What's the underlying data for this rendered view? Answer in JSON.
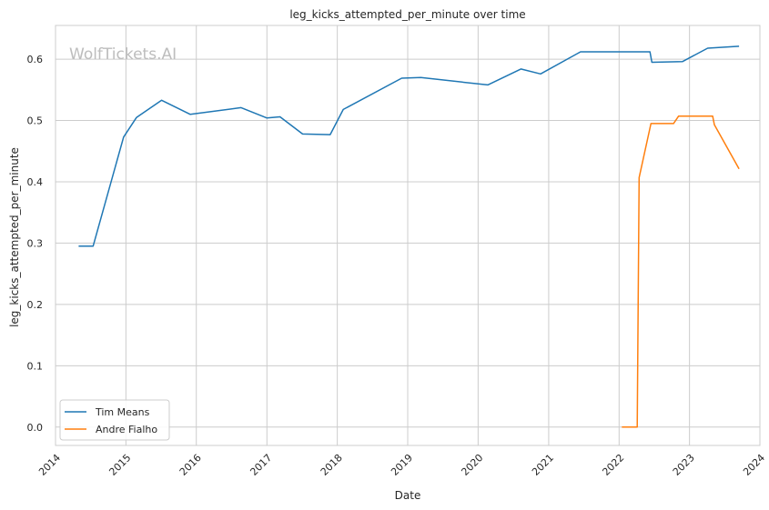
{
  "chart_data": {
    "type": "line",
    "title": "leg_kicks_attempted_per_minute over time",
    "xlabel": "Date",
    "ylabel": "leg_kicks_attempted_per_minute",
    "watermark": "WolfTickets.AI",
    "x_ticks": [
      "2014",
      "2015",
      "2016",
      "2017",
      "2018",
      "2019",
      "2020",
      "2021",
      "2022",
      "2023",
      "2024"
    ],
    "y_ticks": [
      "0.0",
      "0.1",
      "0.2",
      "0.3",
      "0.4",
      "0.5",
      "0.6"
    ],
    "xlim": [
      "2014-01-01",
      "2024-01-01"
    ],
    "ylim": [
      -0.03,
      0.655
    ],
    "grid": true,
    "legend_position": "lower-left",
    "series": [
      {
        "name": "Tim Means",
        "color": "#1f77b4",
        "points": [
          [
            "2014-05-01",
            0.295
          ],
          [
            "2014-07-15",
            0.295
          ],
          [
            "2014-12-20",
            0.473
          ],
          [
            "2015-02-25",
            0.505
          ],
          [
            "2015-07-05",
            0.533
          ],
          [
            "2015-12-01",
            0.51
          ],
          [
            "2016-08-20",
            0.521
          ],
          [
            "2017-01-01",
            0.504
          ],
          [
            "2017-03-10",
            0.506
          ],
          [
            "2017-07-05",
            0.478
          ],
          [
            "2017-11-25",
            0.477
          ],
          [
            "2018-02-01",
            0.518
          ],
          [
            "2018-12-01",
            0.569
          ],
          [
            "2019-03-10",
            0.57
          ],
          [
            "2020-02-20",
            0.558
          ],
          [
            "2020-08-10",
            0.584
          ],
          [
            "2020-11-20",
            0.576
          ],
          [
            "2021-06-15",
            0.612
          ],
          [
            "2022-06-10",
            0.612
          ],
          [
            "2022-06-20",
            0.595
          ],
          [
            "2022-11-25",
            0.596
          ],
          [
            "2023-04-05",
            0.618
          ],
          [
            "2023-09-15",
            0.621
          ]
        ]
      },
      {
        "name": "Andre Fialho",
        "color": "#ff7f0e",
        "points": [
          [
            "2022-01-15",
            0.0
          ],
          [
            "2022-04-05",
            0.0
          ],
          [
            "2022-04-15",
            0.407
          ],
          [
            "2022-06-15",
            0.495
          ],
          [
            "2022-10-10",
            0.495
          ],
          [
            "2022-11-05",
            0.507
          ],
          [
            "2023-05-01",
            0.507
          ],
          [
            "2023-05-10",
            0.493
          ],
          [
            "2023-09-15",
            0.421
          ]
        ]
      }
    ]
  }
}
